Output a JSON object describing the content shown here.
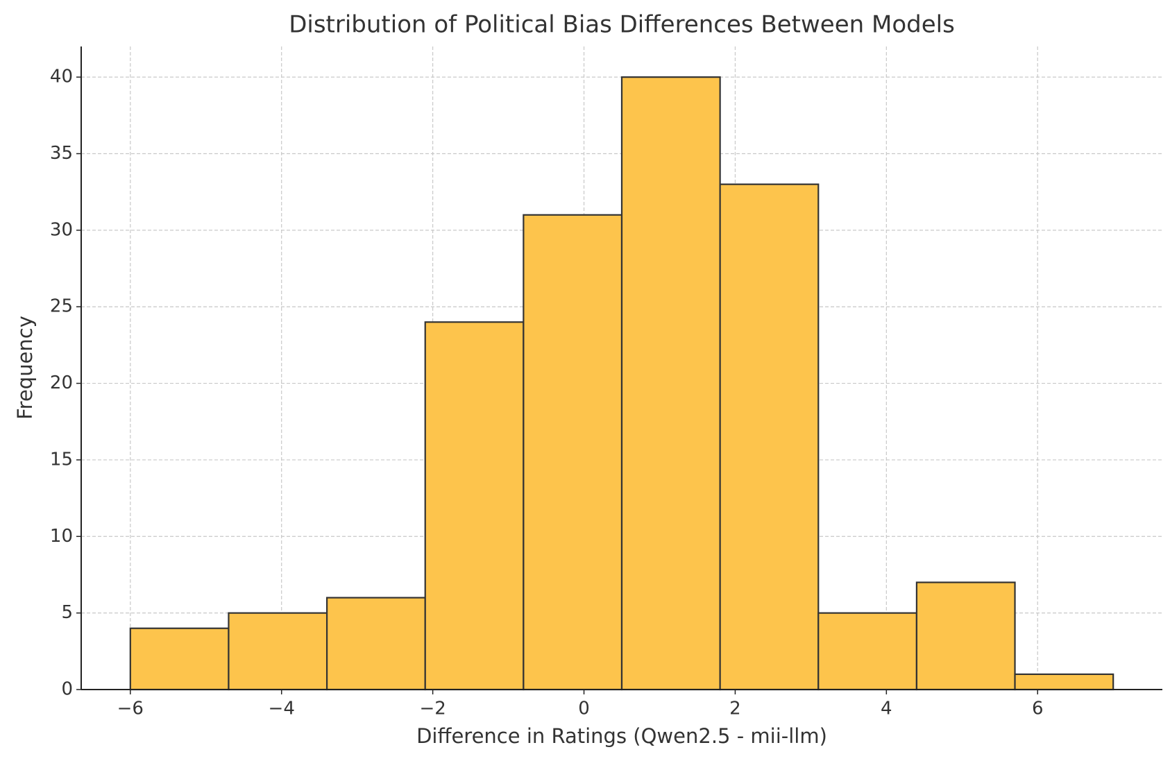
{
  "chart_data": {
    "type": "histogram",
    "title": "Distribution of Political Bias Differences Between Models",
    "xlabel": "Difference in Ratings (Qwen2.5 - mii-llm)",
    "ylabel": "Frequency",
    "bins": [
      -6,
      -4.7,
      -3.4,
      -2.1,
      -0.8,
      0.5,
      1.8,
      3.1,
      4.4,
      5.7,
      7
    ],
    "values": [
      4,
      5,
      6,
      24,
      31,
      40,
      33,
      5,
      7,
      1
    ],
    "color": "#fdc44c",
    "edgecolor": "#333333",
    "xlim": [
      -6.65,
      7.65
    ],
    "ylim": [
      0,
      42
    ],
    "xticks": [
      {
        "value": -6,
        "label": "−6"
      },
      {
        "value": -4,
        "label": "−4"
      },
      {
        "value": -2,
        "label": "−2"
      },
      0,
      2,
      4,
      6
    ],
    "yticks": [
      0,
      5,
      10,
      15,
      20,
      25,
      30,
      35,
      40
    ],
    "grid": true
  }
}
